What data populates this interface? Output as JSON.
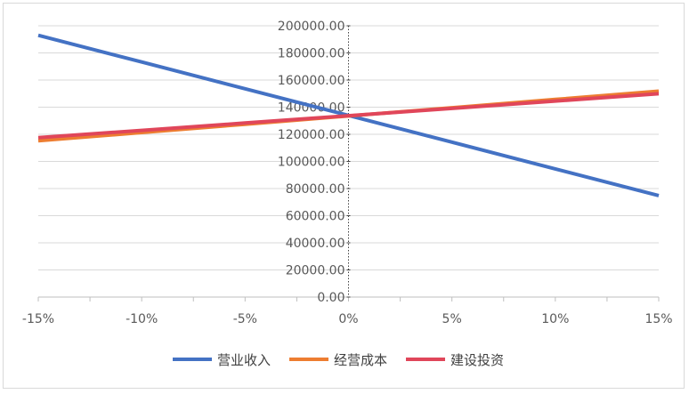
{
  "chart_data": {
    "type": "line",
    "title": "",
    "xlabel": "",
    "ylabel": "",
    "x": [
      "-15%",
      "-10%",
      "-5%",
      "0%",
      "5%",
      "10%",
      "15%"
    ],
    "x_values": [
      -15,
      -10,
      -5,
      0,
      5,
      10,
      15
    ],
    "ylim": [
      0,
      200000
    ],
    "yticks": [
      "0.00",
      "20000.00",
      "40000.00",
      "60000.00",
      "80000.00",
      "100000.00",
      "120000.00",
      "140000.00",
      "160000.00",
      "180000.00",
      "200000.00"
    ],
    "grid": "horizontal",
    "legend_position": "bottom",
    "series": [
      {
        "name": "营业收入",
        "color": "#4472C4",
        "values": [
          193000,
          173300,
          153600,
          133900,
          114200,
          94500,
          74800
        ]
      },
      {
        "name": "经营成本",
        "color": "#ED7D31",
        "values": [
          115200,
          121300,
          127400,
          133500,
          139600,
          145700,
          151800
        ]
      },
      {
        "name": "建设投资",
        "color": "#E0465A",
        "values": [
          117500,
          122900,
          128300,
          133700,
          139100,
          144500,
          149900
        ]
      }
    ]
  }
}
